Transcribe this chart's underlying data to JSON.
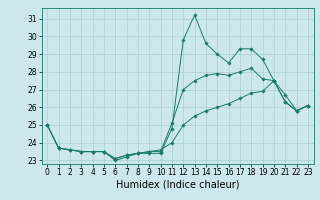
{
  "title": "",
  "xlabel": "Humidex (Indice chaleur)",
  "x_values": [
    0,
    1,
    2,
    3,
    4,
    5,
    6,
    7,
    8,
    9,
    10,
    11,
    12,
    13,
    14,
    15,
    16,
    17,
    18,
    19,
    20,
    21,
    22,
    23
  ],
  "series": [
    [
      25.0,
      23.7,
      23.6,
      23.5,
      23.5,
      23.5,
      23.0,
      23.2,
      23.4,
      23.4,
      23.4,
      24.8,
      29.8,
      31.2,
      29.6,
      29.0,
      28.5,
      29.3,
      29.3,
      28.7,
      27.5,
      26.7,
      25.8,
      26.1
    ],
    [
      25.0,
      23.7,
      23.6,
      23.5,
      23.5,
      23.5,
      23.1,
      23.3,
      23.4,
      23.5,
      23.5,
      25.1,
      27.0,
      27.5,
      27.8,
      27.9,
      27.8,
      28.0,
      28.2,
      27.6,
      27.5,
      26.3,
      25.8,
      26.1
    ],
    [
      25.0,
      23.7,
      23.6,
      23.5,
      23.5,
      23.5,
      23.1,
      23.3,
      23.4,
      23.5,
      23.6,
      24.0,
      25.0,
      25.5,
      25.8,
      26.0,
      26.2,
      26.5,
      26.8,
      26.9,
      27.5,
      26.3,
      25.8,
      26.1
    ]
  ],
  "line_color": "#1a7a6e",
  "marker": "D",
  "markersize": 1.8,
  "linewidth": 0.7,
  "bg_color": "#cde8ec",
  "grid_color": "#aacdd3",
  "ylim": [
    22.8,
    31.6
  ],
  "yticks": [
    23,
    24,
    25,
    26,
    27,
    28,
    29,
    30,
    31
  ],
  "xlim": [
    -0.5,
    23.5
  ],
  "xticks": [
    0,
    1,
    2,
    3,
    4,
    5,
    6,
    7,
    8,
    9,
    10,
    11,
    12,
    13,
    14,
    15,
    16,
    17,
    18,
    19,
    20,
    21,
    22,
    23
  ],
  "tick_fontsize": 5.5,
  "label_fontsize": 7
}
